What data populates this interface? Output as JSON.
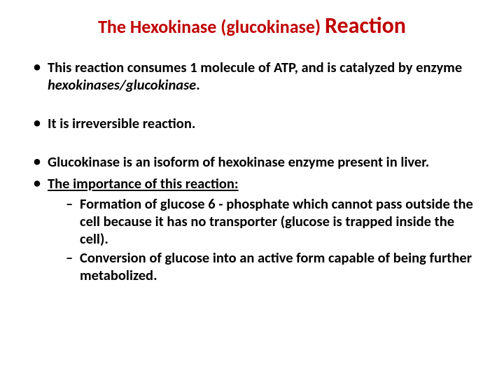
{
  "colors": {
    "title": "#c00000",
    "body": "#000000",
    "background": "#ffffff"
  },
  "typography": {
    "title_part_a_size_pt": 20,
    "title_part_b_size_pt": 24,
    "body_size_pt": 15,
    "font_family": "Calibri",
    "title_weight": 700,
    "body_weight": 700
  },
  "title": {
    "part_a": "The Hexokinase (glucokinase) ",
    "part_b": "Reaction"
  },
  "bullets": {
    "b1_pre": "This reaction consumes 1 molecule of ATP, and is catalyzed by enzyme ",
    "b1_em": "hexokinases/glucokinase",
    "b1_post": ".",
    "b2": "It is irreversible reaction.",
    "b3": "Glucokinase is an isoform of hexokinase enzyme present in liver.",
    "b4_label": "The importance of this reaction:",
    "b4_sub1": "Formation of glucose 6 - phosphate which cannot pass outside the cell because it has no transporter (glucose is trapped inside the cell).",
    "b4_sub2": "Conversion of glucose into an active form capable of being further metabolized."
  }
}
